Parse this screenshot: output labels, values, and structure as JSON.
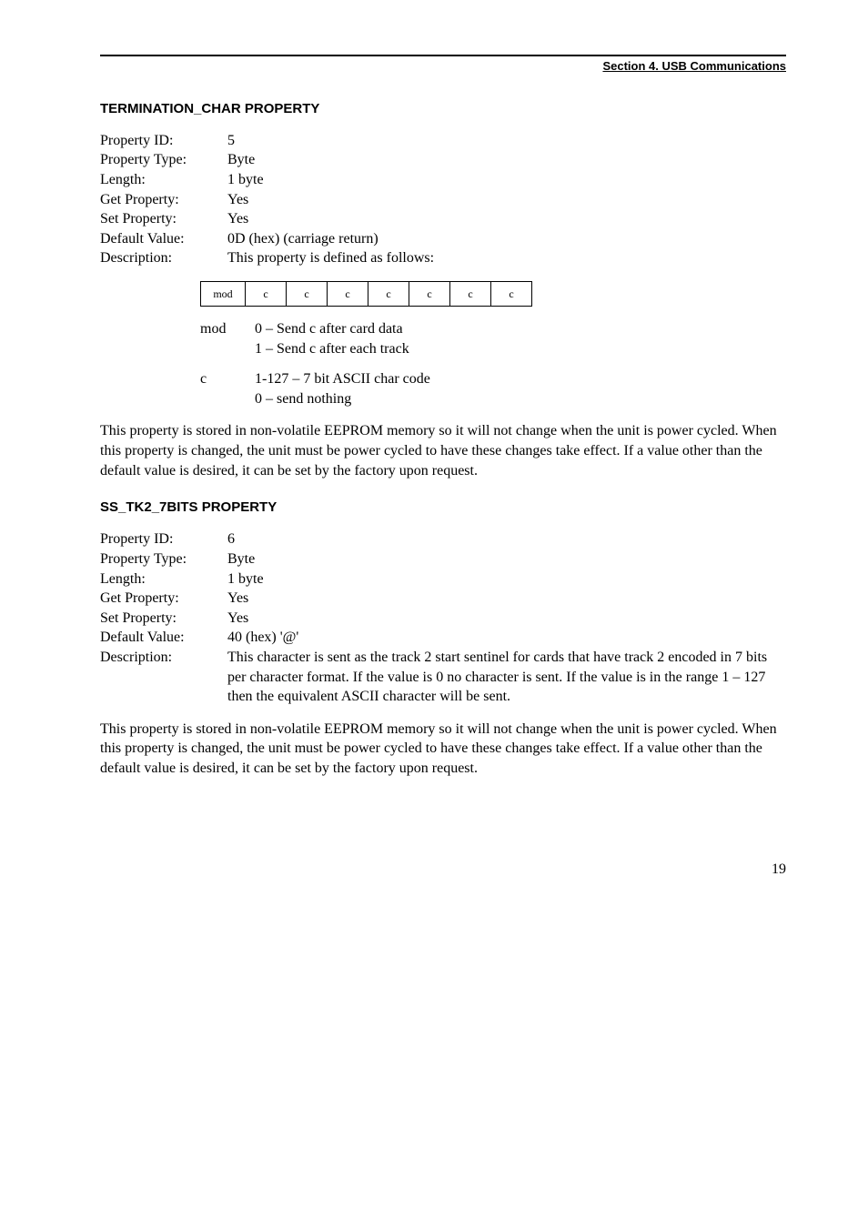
{
  "header": {
    "section_label": "Section 4.  USB Communications"
  },
  "termination_char": {
    "heading": "TERMINATION_CHAR PROPERTY",
    "rows": {
      "property_id": {
        "label": "Property ID:",
        "value": "5"
      },
      "property_type": {
        "label": "Property Type:",
        "value": "Byte"
      },
      "length": {
        "label": "Length:",
        "value": "1 byte"
      },
      "get_property": {
        "label": "Get Property:",
        "value": "Yes"
      },
      "set_property": {
        "label": "Set Property:",
        "value": "Yes"
      },
      "default_value": {
        "label": "Default Value:",
        "value": "0D (hex) (carriage return)"
      },
      "description": {
        "label": "Description:",
        "value": "This property is defined as follows:"
      }
    },
    "bit_cells": [
      "mod",
      "c",
      "c",
      "c",
      "c",
      "c",
      "c",
      "c"
    ],
    "legend": {
      "mod": {
        "label": "mod",
        "line1": "0 – Send c after card data",
        "line2": "1 – Send c after each track"
      },
      "c": {
        "label": "c",
        "line1": "1-127 – 7 bit ASCII char code",
        "line2": "0 – send nothing"
      }
    },
    "paragraph": "This property is stored in non-volatile EEPROM memory so it will not change when the unit is power cycled.  When this property is changed, the unit must be power cycled to have these changes take effect.  If a value other than the default value is desired, it can be set by the factory upon request."
  },
  "ss_tk2_7bits": {
    "heading": "SS_TK2_7BITS PROPERTY",
    "rows": {
      "property_id": {
        "label": "Property ID:",
        "value": "6"
      },
      "property_type": {
        "label": "Property Type:",
        "value": "Byte"
      },
      "length": {
        "label": "Length:",
        "value": "1 byte"
      },
      "get_property": {
        "label": "Get Property:",
        "value": "Yes"
      },
      "set_property": {
        "label": "Set Property:",
        "value": "Yes"
      },
      "default_value": {
        "label": "Default Value:",
        "value": "40 (hex) '@'"
      },
      "description": {
        "label": "Description:",
        "value": "This character is sent as the track 2 start sentinel for cards that have track 2 encoded in 7 bits per character format.  If the value is 0 no character is sent.  If the value is in the range 1 – 127 then the equivalent ASCII character will be sent."
      }
    },
    "paragraph": "This property is stored in non-volatile EEPROM memory so it will not change when the unit is power cycled.  When this property is changed, the unit must be power cycled to have these changes take effect.  If a value other than the default value is desired, it can be set by the factory upon request."
  },
  "footer": {
    "page_number": "19"
  }
}
